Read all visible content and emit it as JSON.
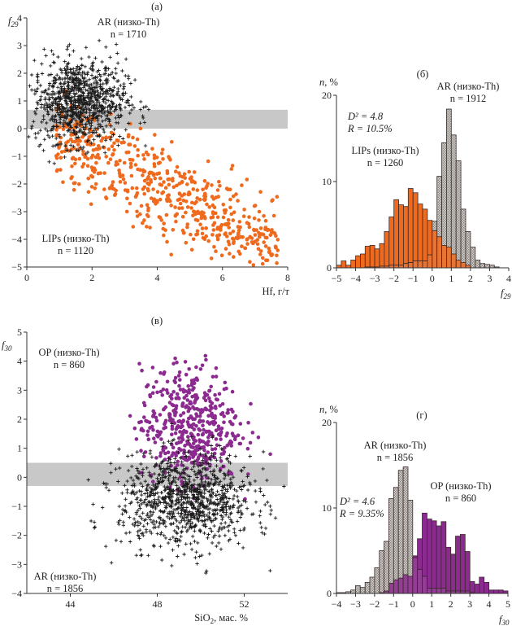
{
  "chart_data": [
    {
      "panel": "(а)",
      "type": "scatter",
      "xlabel": "Hf, г/т",
      "ylabel": "f29",
      "xlim": [
        0,
        8
      ],
      "ylim": [
        -5,
        4
      ],
      "xticks": [
        "0",
        "2",
        "4",
        "6",
        "8"
      ],
      "yticks": [
        "−5",
        "−4",
        "−3",
        "−2",
        "−1",
        "0",
        "1",
        "2",
        "3",
        "4"
      ],
      "band": [
        0,
        0.68
      ],
      "series": [
        {
          "name": "AR (низко-Th)",
          "n_label": "n = 1710",
          "marker": "plus",
          "color": "#1a1a1a",
          "center": [
            1.6,
            1.0
          ],
          "spread": [
            0.9,
            0.75
          ],
          "count": 1710
        },
        {
          "name": "LIPs (низко-Th)",
          "n_label": "n = 1120",
          "marker": "dot",
          "color": "#f06a1e",
          "center": [
            3.8,
            -1.8
          ],
          "spread": [
            1.3,
            1.0
          ],
          "count": 1120
        }
      ]
    },
    {
      "panel": "(б)",
      "type": "bar",
      "xlabel": "f29",
      "ylabel": "n, %",
      "xlim": [
        -5,
        4
      ],
      "ylim": [
        0,
        20
      ],
      "xticks": [
        "−5",
        "−4",
        "−3",
        "−2",
        "−1",
        "0",
        "1",
        "2",
        "3",
        "4"
      ],
      "yticks": [
        "0",
        "10",
        "20"
      ],
      "bin_start": -5,
      "bin_width": 0.25,
      "annotation": [
        "D² = 4.8",
        "R = 10.5%"
      ],
      "series": [
        {
          "name": "LIPs (низко-Th)",
          "n_label": "n = 1260",
          "color": "#f06a1e",
          "values": [
            0.3,
            0.8,
            0.3,
            0.9,
            1.4,
            1.6,
            2.5,
            2.6,
            2.2,
            2.8,
            4.2,
            5.9,
            7.9,
            7.3,
            7.1,
            9.2,
            8.7,
            7.4,
            6.8,
            5.5,
            4.3,
            3.6,
            2.6,
            2.4,
            1.6,
            0.9,
            0.6,
            0.3,
            0,
            0,
            0,
            0,
            0,
            0,
            0,
            0
          ]
        },
        {
          "name": "AR (низко-Th)",
          "n_label": "n = 1912",
          "color": "#b8b4b0",
          "values": [
            0,
            0,
            0,
            0,
            0,
            0,
            0.1,
            0.1,
            0.1,
            0.2,
            0.2,
            0.3,
            0.3,
            0.3,
            0.5,
            0.6,
            0.8,
            0.8,
            0.8,
            1.5,
            5.4,
            10.6,
            14.5,
            18.4,
            15.4,
            12.4,
            6.8,
            4.2,
            2.4,
            0.9,
            0.5,
            0.4,
            0.3,
            0.1,
            0,
            0
          ]
        }
      ]
    },
    {
      "panel": "(в)",
      "type": "scatter",
      "xlabel": "SiO2, мас. %",
      "ylabel": "f30",
      "xlim": [
        42,
        54
      ],
      "ylim": [
        -4,
        5
      ],
      "xticks": [
        "44",
        "48",
        "52"
      ],
      "yticks": [
        "−4",
        "−3",
        "−2",
        "−1",
        "0",
        "1",
        "2",
        "3",
        "4",
        "5"
      ],
      "band": [
        -0.3,
        0.5
      ],
      "series": [
        {
          "name": "OP (низко-Th)",
          "n_label": "n = 860",
          "marker": "dot",
          "color": "#8b2a8f",
          "center": [
            49.5,
            1.8
          ],
          "spread": [
            1.4,
            1.0
          ],
          "count": 860
        },
        {
          "name": "AR (низко-Th)",
          "n_label": "n = 1856",
          "marker": "plus",
          "color": "#1a1a1a",
          "center": [
            49.3,
            -0.8
          ],
          "spread": [
            1.9,
            0.8
          ],
          "count": 1856
        }
      ]
    },
    {
      "panel": "(г)",
      "type": "bar",
      "xlabel": "f30",
      "ylabel": "n, %",
      "xlim": [
        -4,
        5
      ],
      "ylim": [
        0,
        20
      ],
      "xticks": [
        "−4",
        "−3",
        "−2",
        "−1",
        "0",
        "1",
        "2",
        "3",
        "4",
        "5"
      ],
      "yticks": [
        "0",
        "10",
        "20"
      ],
      "bin_start": -4,
      "bin_width": 0.25,
      "annotation": [
        "D² = 4.6",
        "R = 9.35%"
      ],
      "series": [
        {
          "name": "AR (низко-Th)",
          "n_label": "n = 1856",
          "color": "#b8b4b0",
          "values": [
            0.1,
            0.1,
            0.2,
            0.4,
            0.9,
            0.7,
            1.3,
            1.9,
            3.0,
            5.0,
            6.1,
            11.1,
            12.4,
            14.4,
            14.8,
            10.9,
            4.2,
            2.8,
            2.0,
            0.6,
            0.6,
            0.6,
            0.6,
            0.3,
            0.3,
            0.3,
            0.3,
            0.3,
            0.1,
            0,
            0,
            0,
            0,
            0,
            0,
            0
          ]
        },
        {
          "name": "OP (низко-Th)",
          "n_label": "n = 860",
          "color": "#8b2a8f",
          "values": [
            0,
            0,
            0,
            0,
            0,
            0,
            0,
            0,
            0,
            0.1,
            0.3,
            1.2,
            1.6,
            1.8,
            2.2,
            2.0,
            4.4,
            6.4,
            9.4,
            8.7,
            8.5,
            7.9,
            8.4,
            5.4,
            4.6,
            6.7,
            6.9,
            4.9,
            1.4,
            1.1,
            1.9,
            1.3,
            0.4,
            0.4,
            0.4,
            0.3
          ]
        }
      ]
    }
  ]
}
